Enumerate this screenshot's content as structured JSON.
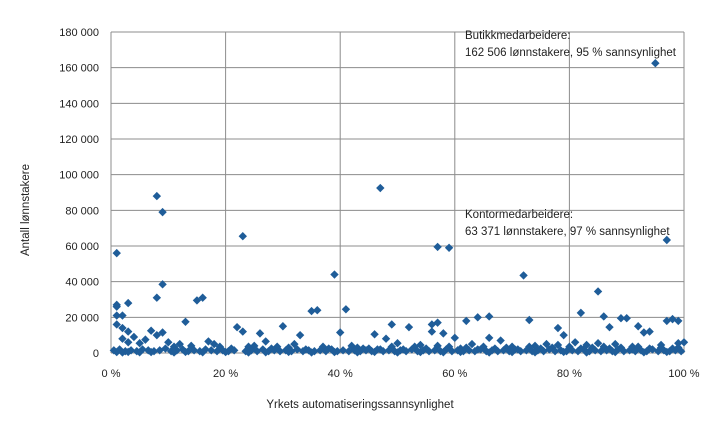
{
  "chart_data": {
    "type": "scatter",
    "title": "",
    "xlabel": "Yrkets automatiseringssannsynlighet",
    "ylabel": "Antall lønnstakere",
    "xlim": [
      0,
      1
    ],
    "ylim": [
      0,
      180000
    ],
    "x_ticks": [
      "0 %",
      "20 %",
      "40 %",
      "60 %",
      "80 %",
      "100 %"
    ],
    "y_ticks": [
      "0",
      "20 000",
      "40 000",
      "60 000",
      "80 000",
      "100 000",
      "120 000",
      "140 000",
      "160 000",
      "180 000"
    ],
    "grid": true,
    "marker": "diamond",
    "color": "#1f5d99",
    "annotations": [
      {
        "line1": "Butikkmedarbeidere:",
        "line2": "162 506 lønnstakere, 95 % sannsynlighet"
      },
      {
        "line1": "Kontormedarbeidere:",
        "line2": "63 371 lønnstakere, 97 % sannsynlighet"
      }
    ],
    "points": [
      [
        0.95,
        162506
      ],
      [
        0.97,
        63371
      ],
      [
        0.01,
        56000
      ],
      [
        0.08,
        88000
      ],
      [
        0.09,
        79000
      ],
      [
        0.09,
        38500
      ],
      [
        0.08,
        31000
      ],
      [
        0.23,
        65500
      ],
      [
        0.47,
        92500
      ],
      [
        0.39,
        44000
      ],
      [
        0.57,
        59500
      ],
      [
        0.59,
        59000
      ],
      [
        0.72,
        43500
      ],
      [
        0.85,
        34500
      ],
      [
        0.15,
        29500
      ],
      [
        0.16,
        31000
      ],
      [
        0.01,
        27000
      ],
      [
        0.01,
        26000
      ],
      [
        0.01,
        21000
      ],
      [
        0.02,
        21000
      ],
      [
        0.01,
        16000
      ],
      [
        0.02,
        14000
      ],
      [
        0.03,
        28000
      ],
      [
        0.03,
        12000
      ],
      [
        0.13,
        17500
      ],
      [
        0.35,
        23500
      ],
      [
        0.36,
        24000
      ],
      [
        0.41,
        24500
      ],
      [
        0.49,
        16000
      ],
      [
        0.52,
        14500
      ],
      [
        0.56,
        16000
      ],
      [
        0.57,
        17000
      ],
      [
        0.58,
        11000
      ],
      [
        0.56,
        12000
      ],
      [
        0.62,
        18000
      ],
      [
        0.64,
        20000
      ],
      [
        0.66,
        20500
      ],
      [
        0.73,
        18500
      ],
      [
        0.78,
        14000
      ],
      [
        0.79,
        10000
      ],
      [
        0.82,
        22500
      ],
      [
        0.86,
        20500
      ],
      [
        0.87,
        14500
      ],
      [
        0.89,
        19500
      ],
      [
        0.9,
        19500
      ],
      [
        0.92,
        15000
      ],
      [
        0.93,
        11500
      ],
      [
        0.94,
        12000
      ],
      [
        0.97,
        18000
      ],
      [
        0.98,
        19000
      ],
      [
        0.99,
        18000
      ],
      [
        0.22,
        14500
      ],
      [
        0.23,
        12000
      ],
      [
        0.26,
        11000
      ],
      [
        0.3,
        15000
      ],
      [
        0.27,
        6500
      ],
      [
        0.33,
        10000
      ],
      [
        0.4,
        11500
      ],
      [
        0.44,
        2500
      ],
      [
        0.46,
        10500
      ],
      [
        0.48,
        8000
      ],
      [
        0.5,
        5500
      ],
      [
        0.54,
        4500
      ],
      [
        0.6,
        8500
      ],
      [
        0.63,
        5000
      ],
      [
        0.66,
        8500
      ],
      [
        0.68,
        7000
      ],
      [
        0.7,
        3500
      ],
      [
        0.74,
        4000
      ],
      [
        0.76,
        5000
      ],
      [
        0.81,
        6000
      ],
      [
        0.83,
        4500
      ],
      [
        0.85,
        5500
      ],
      [
        0.88,
        5000
      ],
      [
        0.91,
        3500
      ],
      [
        0.96,
        4500
      ],
      [
        0.99,
        5500
      ],
      [
        1.0,
        6000
      ],
      [
        0.02,
        8000
      ],
      [
        0.03,
        6000
      ],
      [
        0.04,
        9000
      ],
      [
        0.05,
        5500
      ],
      [
        0.06,
        7500
      ],
      [
        0.07,
        12500
      ],
      [
        0.08,
        10000
      ],
      [
        0.09,
        11500
      ],
      [
        0.1,
        6000
      ],
      [
        0.11,
        3500
      ],
      [
        0.12,
        5000
      ],
      [
        0.14,
        4000
      ],
      [
        0.17,
        6500
      ],
      [
        0.18,
        5000
      ],
      [
        0.19,
        3500
      ],
      [
        0.21,
        2500
      ],
      [
        0.24,
        3500
      ],
      [
        0.25,
        4000
      ],
      [
        0.28,
        2500
      ],
      [
        0.29,
        3500
      ],
      [
        0.31,
        3000
      ],
      [
        0.32,
        5000
      ],
      [
        0.34,
        2000
      ],
      [
        0.37,
        3500
      ],
      [
        0.38,
        2500
      ],
      [
        0.42,
        4000
      ],
      [
        0.43,
        3000
      ],
      [
        0.45,
        2500
      ],
      [
        0.47,
        2000
      ],
      [
        0.49,
        3500
      ],
      [
        0.51,
        2000
      ],
      [
        0.53,
        3500
      ],
      [
        0.55,
        2500
      ],
      [
        0.57,
        4000
      ],
      [
        0.59,
        3500
      ],
      [
        0.61,
        2500
      ],
      [
        0.62,
        3000
      ],
      [
        0.64,
        2000
      ],
      [
        0.65,
        3500
      ],
      [
        0.67,
        2500
      ],
      [
        0.69,
        3000
      ],
      [
        0.71,
        2000
      ],
      [
        0.73,
        3500
      ],
      [
        0.75,
        2500
      ],
      [
        0.77,
        3000
      ],
      [
        0.78,
        4500
      ],
      [
        0.8,
        3500
      ],
      [
        0.82,
        2500
      ],
      [
        0.84,
        3000
      ],
      [
        0.86,
        3500
      ],
      [
        0.87,
        2500
      ],
      [
        0.89,
        3000
      ],
      [
        0.91,
        2000
      ],
      [
        0.92,
        3500
      ],
      [
        0.94,
        2500
      ],
      [
        0.96,
        3000
      ],
      [
        0.98,
        2500
      ],
      [
        0.99,
        3000
      ],
      [
        0.005,
        1500
      ],
      [
        0.015,
        2000
      ],
      [
        0.025,
        1000
      ],
      [
        0.035,
        1500
      ],
      [
        0.045,
        1000
      ],
      [
        0.055,
        2000
      ],
      [
        0.065,
        1500
      ],
      [
        0.075,
        1000
      ],
      [
        0.085,
        1500
      ],
      [
        0.095,
        2500
      ],
      [
        0.105,
        1000
      ],
      [
        0.115,
        1500
      ],
      [
        0.125,
        2000
      ],
      [
        0.135,
        1000
      ],
      [
        0.145,
        1500
      ],
      [
        0.155,
        1000
      ],
      [
        0.165,
        2000
      ],
      [
        0.175,
        1500
      ],
      [
        0.185,
        1000
      ],
      [
        0.195,
        1500
      ],
      [
        0.205,
        1000
      ],
      [
        0.215,
        1500
      ],
      [
        0.235,
        1000
      ],
      [
        0.245,
        1500
      ],
      [
        0.255,
        1000
      ],
      [
        0.265,
        2000
      ],
      [
        0.275,
        1000
      ],
      [
        0.285,
        1500
      ],
      [
        0.295,
        1000
      ],
      [
        0.305,
        1500
      ],
      [
        0.315,
        1000
      ],
      [
        0.325,
        2000
      ],
      [
        0.335,
        1000
      ],
      [
        0.345,
        1500
      ],
      [
        0.355,
        1000
      ],
      [
        0.365,
        1500
      ],
      [
        0.375,
        1000
      ],
      [
        0.385,
        2000
      ],
      [
        0.395,
        1000
      ],
      [
        0.405,
        1500
      ],
      [
        0.415,
        1000
      ],
      [
        0.425,
        1500
      ],
      [
        0.435,
        1000
      ],
      [
        0.445,
        1500
      ],
      [
        0.455,
        1000
      ],
      [
        0.465,
        2000
      ],
      [
        0.475,
        1000
      ],
      [
        0.485,
        1500
      ],
      [
        0.495,
        1000
      ],
      [
        0.505,
        1500
      ],
      [
        0.515,
        1000
      ],
      [
        0.525,
        2000
      ],
      [
        0.535,
        1000
      ],
      [
        0.545,
        1500
      ],
      [
        0.555,
        1000
      ],
      [
        0.565,
        1500
      ],
      [
        0.575,
        1000
      ],
      [
        0.585,
        2000
      ],
      [
        0.595,
        1000
      ],
      [
        0.605,
        1500
      ],
      [
        0.615,
        1000
      ],
      [
        0.625,
        1500
      ],
      [
        0.635,
        1000
      ],
      [
        0.645,
        2000
      ],
      [
        0.655,
        1000
      ],
      [
        0.665,
        1500
      ],
      [
        0.675,
        1000
      ],
      [
        0.685,
        1500
      ],
      [
        0.695,
        1000
      ],
      [
        0.705,
        2000
      ],
      [
        0.715,
        1000
      ],
      [
        0.725,
        1500
      ],
      [
        0.735,
        1000
      ],
      [
        0.745,
        1500
      ],
      [
        0.755,
        1000
      ],
      [
        0.765,
        2000
      ],
      [
        0.775,
        1000
      ],
      [
        0.785,
        1500
      ],
      [
        0.795,
        1000
      ],
      [
        0.805,
        1500
      ],
      [
        0.815,
        1000
      ],
      [
        0.825,
        2000
      ],
      [
        0.835,
        1000
      ],
      [
        0.845,
        1500
      ],
      [
        0.855,
        1000
      ],
      [
        0.865,
        1500
      ],
      [
        0.875,
        1000
      ],
      [
        0.885,
        2000
      ],
      [
        0.895,
        1000
      ],
      [
        0.905,
        1500
      ],
      [
        0.915,
        1000
      ],
      [
        0.925,
        1500
      ],
      [
        0.935,
        1000
      ],
      [
        0.945,
        2000
      ],
      [
        0.955,
        1000
      ],
      [
        0.965,
        1500
      ],
      [
        0.975,
        1000
      ],
      [
        0.985,
        1500
      ],
      [
        0.995,
        1000
      ],
      [
        0.01,
        500
      ],
      [
        0.02,
        300
      ],
      [
        0.03,
        600
      ],
      [
        0.05,
        400
      ],
      [
        0.07,
        500
      ],
      [
        0.11,
        300
      ],
      [
        0.13,
        600
      ],
      [
        0.16,
        400
      ],
      [
        0.2,
        500
      ],
      [
        0.24,
        300
      ],
      [
        0.27,
        400
      ],
      [
        0.31,
        600
      ],
      [
        0.35,
        300
      ],
      [
        0.39,
        500
      ],
      [
        0.43,
        400
      ],
      [
        0.46,
        600
      ],
      [
        0.5,
        300
      ],
      [
        0.54,
        500
      ],
      [
        0.58,
        400
      ],
      [
        0.61,
        600
      ],
      [
        0.66,
        300
      ],
      [
        0.7,
        500
      ],
      [
        0.74,
        400
      ],
      [
        0.79,
        600
      ],
      [
        0.83,
        300
      ],
      [
        0.88,
        500
      ],
      [
        0.93,
        400
      ],
      [
        0.97,
        600
      ]
    ]
  }
}
